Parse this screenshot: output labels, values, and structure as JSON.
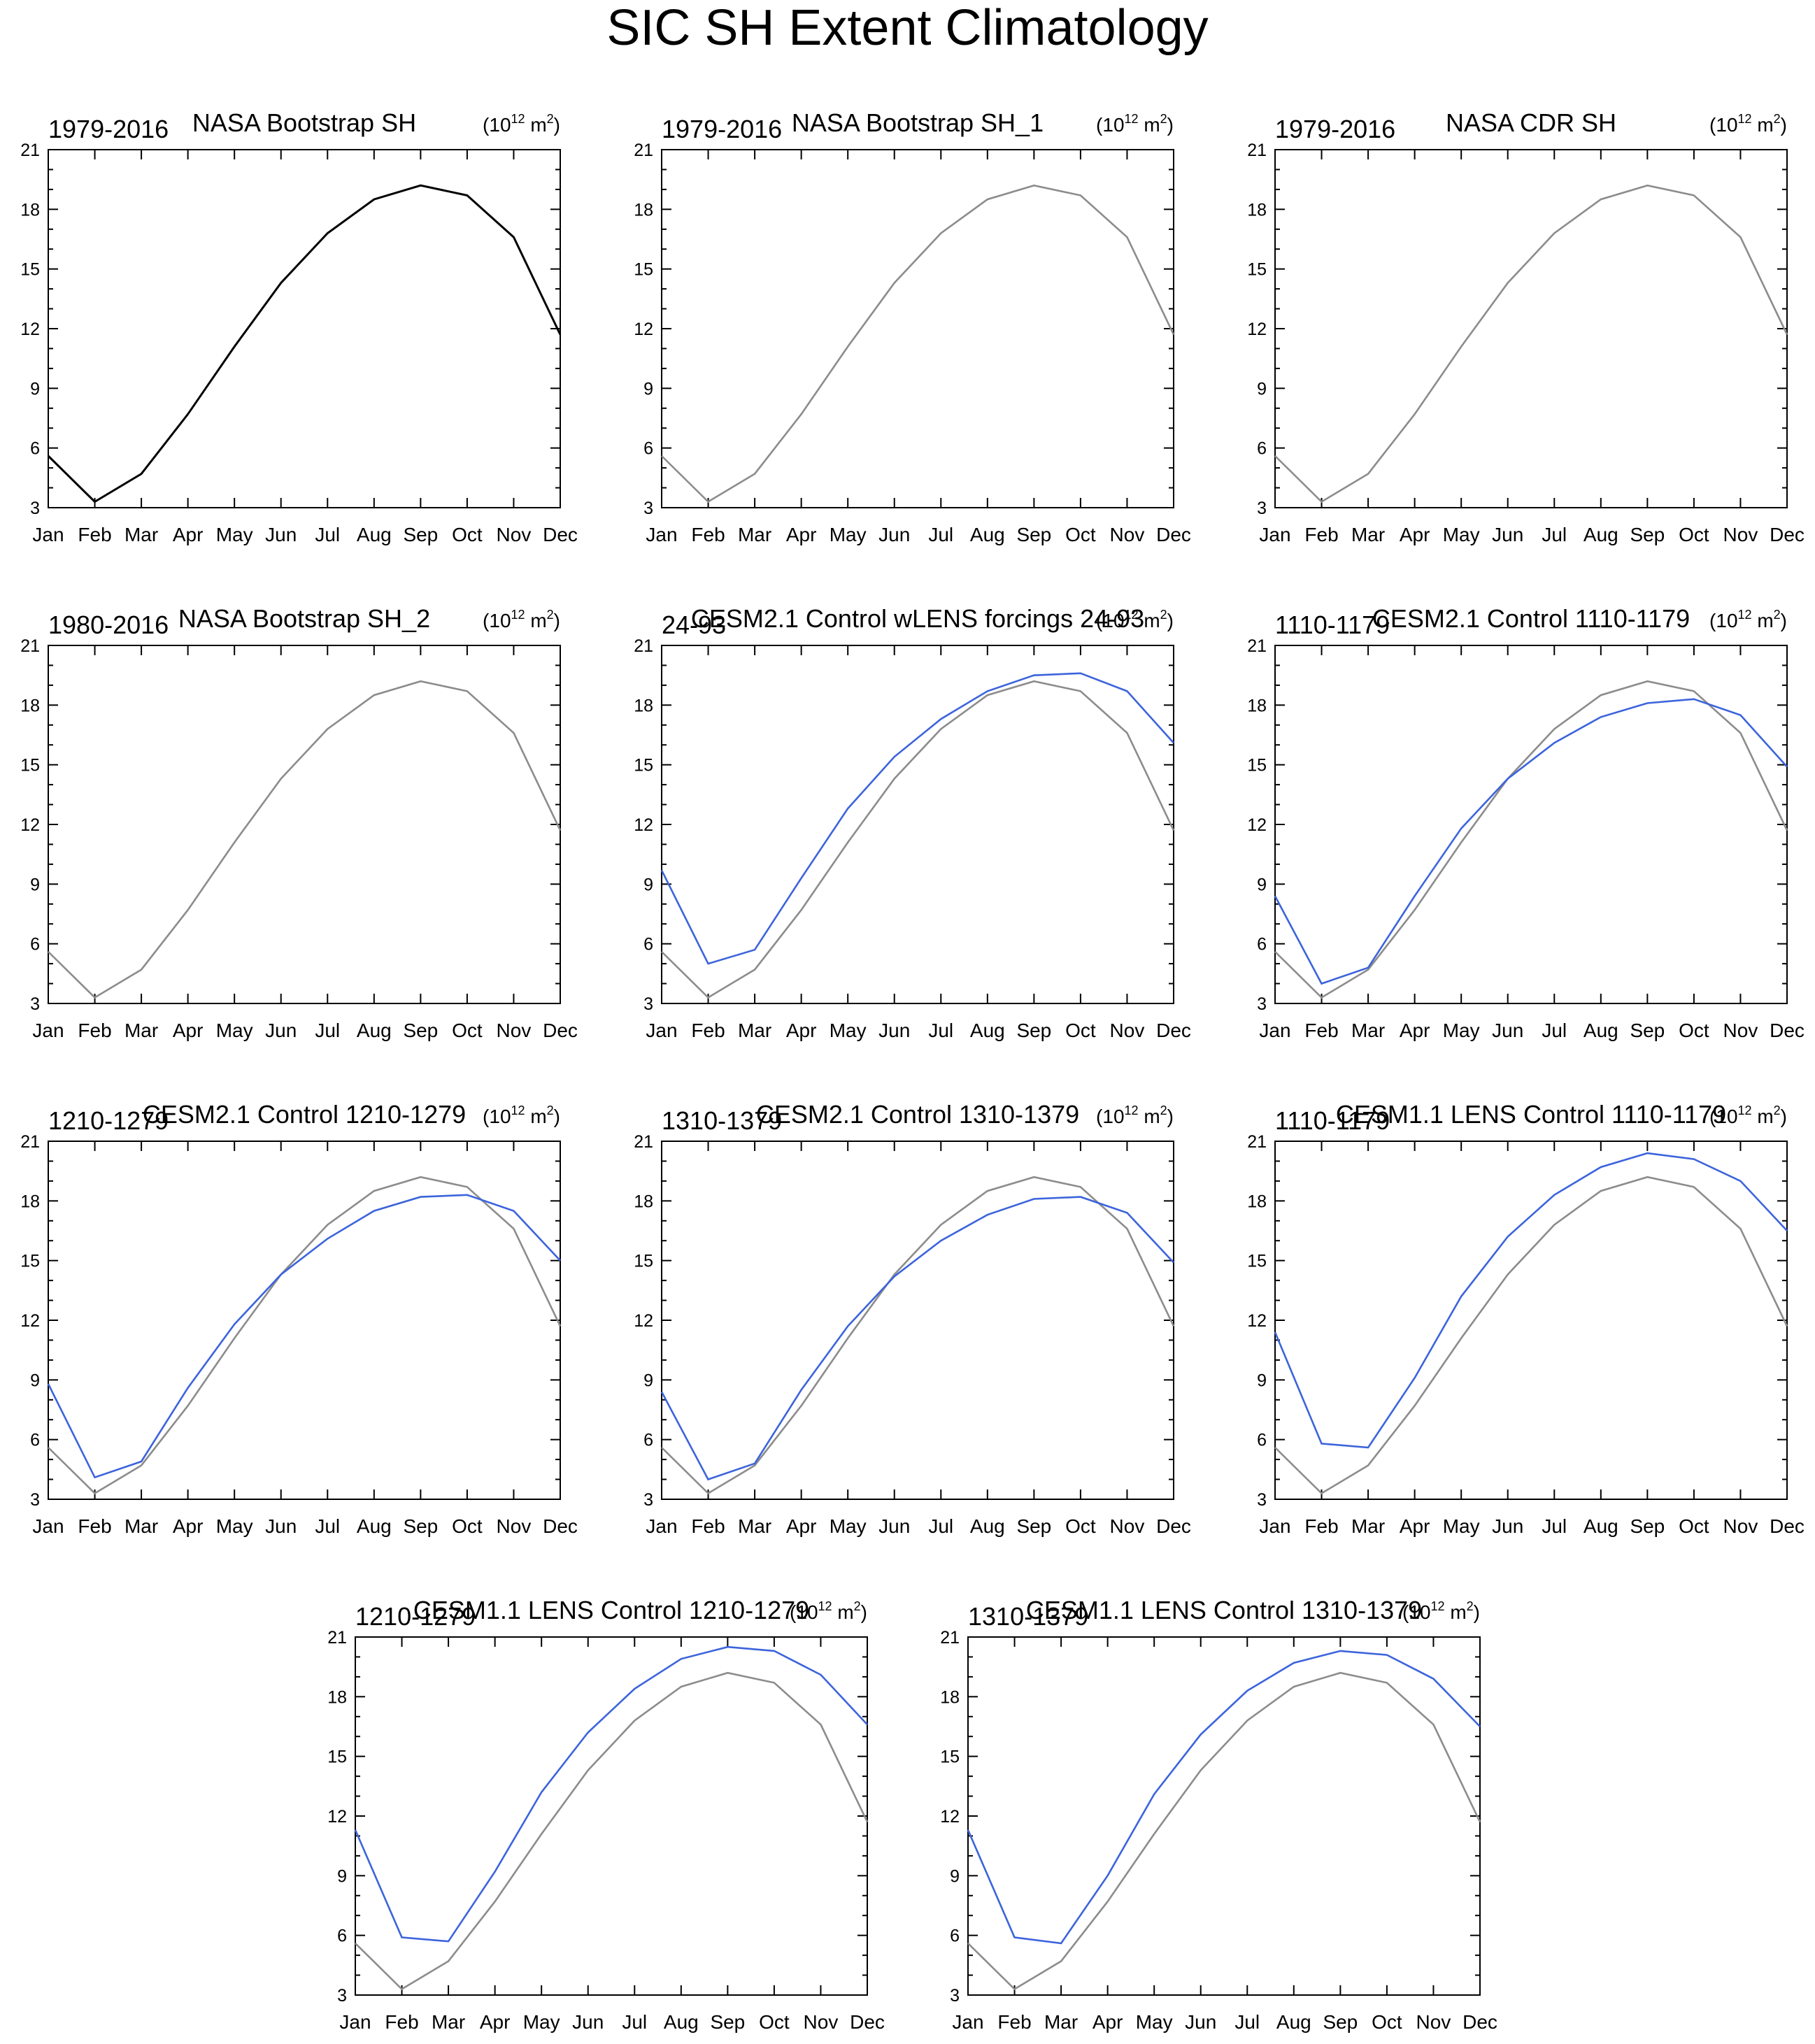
{
  "title": "SIC SH Extent Climatology",
  "colors": {
    "obs": "#000000",
    "ref": "#8c8c8c",
    "model": "#3c64dc"
  },
  "chart_data": {
    "type": "line",
    "x": [
      "Jan",
      "Feb",
      "Mar",
      "Apr",
      "May",
      "Jun",
      "Jul",
      "Aug",
      "Sep",
      "Oct",
      "Nov",
      "Dec"
    ],
    "yticks": [
      3,
      6,
      9,
      12,
      15,
      18,
      21
    ],
    "ylim": [
      3,
      21
    ],
    "units": {
      "base": "(10",
      "sup1": "12",
      "mid": " m",
      "sup2": "2",
      "end": ")"
    },
    "reference": {
      "name": "NASA Bootstrap SH 1979-2016",
      "values": [
        5.6,
        3.3,
        4.7,
        7.7,
        11.1,
        14.3,
        16.8,
        18.5,
        19.2,
        18.7,
        16.6,
        11.7
      ]
    },
    "panels": [
      {
        "period": "1979-2016",
        "title": "NASA Bootstrap SH",
        "series_type": "obs",
        "values": null
      },
      {
        "period": "1979-2016",
        "title": "NASA Bootstrap SH_1",
        "series_type": "ref",
        "values": null
      },
      {
        "period": "1979-2016",
        "title": "NASA CDR SH",
        "series_type": "ref",
        "values": null
      },
      {
        "period": "1980-2016",
        "title": "NASA Bootstrap SH_2",
        "series_type": "ref",
        "values": null
      },
      {
        "period": "24-93",
        "title": "CESM2.1 Control wLENS forcings 24-93",
        "series_type": "model",
        "values": [
          9.7,
          5.0,
          5.7,
          9.3,
          12.8,
          15.4,
          17.3,
          18.7,
          19.5,
          19.6,
          18.7,
          16.1
        ]
      },
      {
        "period": "1110-1179",
        "title": "CESM2.1 Control 1110-1179",
        "series_type": "model",
        "values": [
          8.4,
          4.0,
          4.8,
          8.4,
          11.8,
          14.3,
          16.1,
          17.4,
          18.1,
          18.3,
          17.5,
          14.9
        ]
      },
      {
        "period": "1210-1279",
        "title": "CESM2.1 Control 1210-1279",
        "series_type": "model",
        "values": [
          8.8,
          4.1,
          4.9,
          8.6,
          11.8,
          14.3,
          16.1,
          17.5,
          18.2,
          18.3,
          17.5,
          15.0
        ]
      },
      {
        "period": "1310-1379",
        "title": "CESM2.1 Control 1310-1379",
        "series_type": "model",
        "values": [
          8.4,
          4.0,
          4.8,
          8.5,
          11.7,
          14.2,
          16.0,
          17.3,
          18.1,
          18.2,
          17.4,
          14.9
        ]
      },
      {
        "period": "1110-1179",
        "title": "CESM1.1 LENS Control 1110-1179",
        "series_type": "model",
        "values": [
          11.4,
          5.8,
          5.6,
          9.1,
          13.2,
          16.2,
          18.3,
          19.7,
          20.4,
          20.1,
          19.0,
          16.5
        ]
      },
      {
        "period": "1210-1279",
        "title": "CESM1.1 LENS Control 1210-1279",
        "series_type": "model",
        "values": [
          11.3,
          5.9,
          5.7,
          9.2,
          13.2,
          16.2,
          18.4,
          19.9,
          20.5,
          20.3,
          19.1,
          16.6
        ]
      },
      {
        "period": "1310-1379",
        "title": "CESM1.1 LENS Control 1310-1379",
        "series_type": "model",
        "values": [
          11.3,
          5.9,
          5.6,
          9.0,
          13.1,
          16.1,
          18.3,
          19.7,
          20.3,
          20.1,
          18.9,
          16.5
        ]
      }
    ]
  }
}
